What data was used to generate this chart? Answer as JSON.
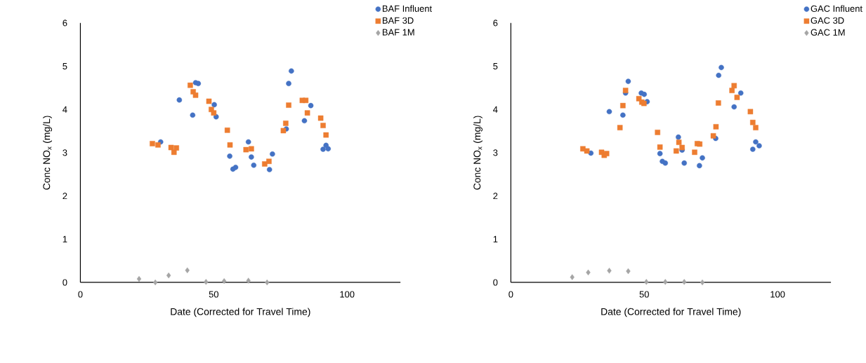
{
  "chart_data": [
    {
      "type": "scatter",
      "xlabel": "Date (Corrected for Travel Time)",
      "ylabel": "Conc NO$_{x}$ (mg/L)",
      "xlim": [
        0,
        120
      ],
      "ylim": [
        0,
        6
      ],
      "xticks": [
        0,
        50,
        100
      ],
      "yticks": [
        0,
        1,
        2,
        3,
        4,
        5,
        6
      ],
      "grid": false,
      "legend": "top right",
      "series": [
        {
          "name": "BAF Influent",
          "color": "#4472c4",
          "marker": "circle",
          "x": [
            30.1,
            37.1,
            42.1,
            43.2,
            44.2,
            50.2,
            50.9,
            56.0,
            57.2,
            58.2,
            63.0,
            64.1,
            65.0,
            70.9,
            72.0,
            77.2,
            78.1,
            79.1,
            84.0,
            86.4,
            91.0,
            92.9,
            92.1
          ],
          "values": [
            3.25,
            4.22,
            3.87,
            4.62,
            4.6,
            4.11,
            3.83,
            2.92,
            2.62,
            2.66,
            3.25,
            2.9,
            2.71,
            2.61,
            2.97,
            3.55,
            4.6,
            4.89,
            3.74,
            4.09,
            3.08,
            3.09,
            3.17
          ]
        },
        {
          "name": "BAF 3D",
          "color": "#ed7d31",
          "marker": "square",
          "x": [
            27.0,
            29.1,
            34.0,
            35.1,
            36.0,
            41.2,
            42.3,
            43.2,
            48.2,
            49.1,
            50.0,
            55.1,
            56.1,
            62.1,
            64.1,
            69.1,
            70.7,
            76.1,
            77.0,
            78.1,
            83.2,
            84.5,
            85.1,
            90.1,
            91.0,
            92.1
          ],
          "values": [
            3.21,
            3.18,
            3.12,
            3.01,
            3.11,
            4.56,
            4.41,
            4.33,
            4.19,
            4.0,
            3.92,
            3.52,
            3.18,
            3.07,
            3.09,
            2.74,
            2.8,
            3.51,
            3.68,
            4.1,
            4.21,
            4.21,
            3.92,
            3.8,
            3.63,
            3.41
          ]
        },
        {
          "name": "BAF 1M",
          "color": "#a5a5a5",
          "marker": "diamond",
          "x": [
            22.0,
            28.1,
            33.1,
            40.1,
            47.1,
            53.9,
            63.0,
            70.0
          ],
          "values": [
            0.08,
            0.0,
            0.16,
            0.28,
            0.01,
            0.03,
            0.04,
            0.0
          ]
        }
      ]
    },
    {
      "type": "scatter",
      "xlabel": "Date (Corrected for Travel Time)",
      "ylabel": "Conc NO$_{x}$ (mg/L)",
      "xlim": [
        0,
        120
      ],
      "ylim": [
        0,
        6
      ],
      "xticks": [
        0,
        50,
        100
      ],
      "yticks": [
        0,
        1,
        2,
        3,
        4,
        5,
        6
      ],
      "grid": false,
      "legend": "top right",
      "series": [
        {
          "name": "GAC Influent",
          "color": "#4472c4",
          "marker": "circle",
          "x": [
            30.0,
            36.9,
            42.0,
            43.0,
            44.0,
            48.9,
            50.0,
            51.1,
            55.9,
            56.8,
            57.9,
            62.8,
            64.2,
            65.0,
            70.7,
            71.8,
            76.8,
            77.9,
            78.9,
            83.7,
            86.2,
            90.7,
            91.8,
            93.1
          ],
          "values": [
            2.99,
            3.95,
            3.87,
            4.38,
            4.65,
            4.38,
            4.35,
            4.18,
            2.98,
            2.8,
            2.76,
            3.36,
            3.06,
            2.76,
            2.7,
            2.88,
            3.33,
            4.79,
            4.97,
            4.06,
            4.38,
            3.08,
            3.25,
            3.16
          ]
        },
        {
          "name": "GAC 3D",
          "color": "#ed7d31",
          "marker": "square",
          "x": [
            27.0,
            28.5,
            34.0,
            35.0,
            35.9,
            40.9,
            42.0,
            43.0,
            48.0,
            49.1,
            49.9,
            55.0,
            55.9,
            62.0,
            63.0,
            64.2,
            68.9,
            69.9,
            70.8,
            75.9,
            76.9,
            77.8,
            82.9,
            83.7,
            84.8,
            89.8,
            90.7,
            91.8
          ],
          "values": [
            3.09,
            3.04,
            3.01,
            2.94,
            2.98,
            3.58,
            4.09,
            4.44,
            4.25,
            4.17,
            4.14,
            3.47,
            3.13,
            3.04,
            3.24,
            3.12,
            3.01,
            3.21,
            3.2,
            3.39,
            3.6,
            4.15,
            4.44,
            4.55,
            4.28,
            3.95,
            3.7,
            3.58
          ]
        },
        {
          "name": "GAC 1M",
          "color": "#a5a5a5",
          "marker": "diamond",
          "x": [
            23.0,
            29.0,
            36.9,
            44.0,
            50.8,
            57.9,
            65.0,
            71.8
          ],
          "values": [
            0.12,
            0.23,
            0.27,
            0.26,
            0.01,
            0.01,
            0.01,
            0.0
          ]
        }
      ]
    }
  ]
}
